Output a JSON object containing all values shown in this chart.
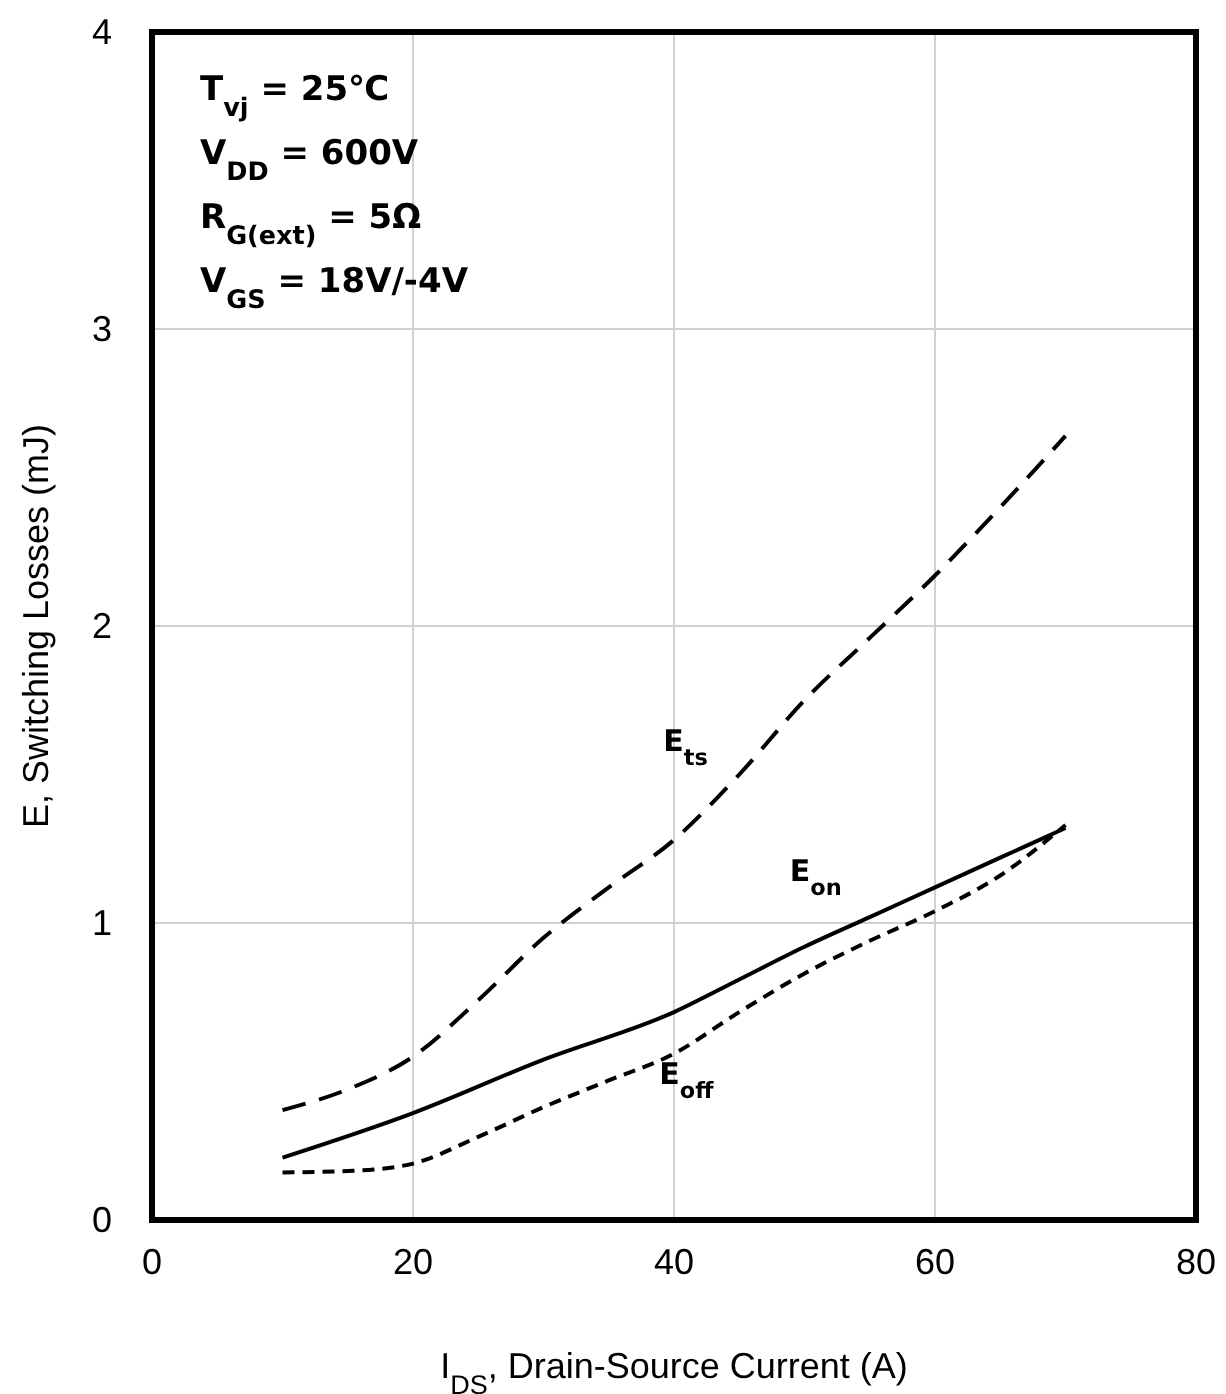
{
  "chart_data": {
    "type": "line",
    "xlabel": "I$_{DS}$, Drain-Source Current (A)",
    "ylabel": "E, Switching Losses (mJ)",
    "xlim": [
      0,
      80
    ],
    "xticks": [
      0,
      20,
      40,
      60,
      80
    ],
    "ylim": [
      0,
      4
    ],
    "yticks": [
      0,
      1,
      2,
      3,
      4
    ],
    "grid": true,
    "legend": false,
    "marker": "none",
    "annotations": [
      "T$_{vj}$ = 25℃",
      "V$_{DD}$ = 600V",
      "R$_{G(ext)}$ = 5Ω",
      "V$_{GS}$ = 18V/-4V"
    ],
    "series": [
      {
        "name": "E$_{ts}$",
        "color": "#000000",
        "line_style": "dashed",
        "x": [
          10,
          15,
          20,
          25,
          30,
          35,
          40,
          45,
          50,
          55,
          60,
          65,
          70
        ],
        "values": [
          0.37,
          0.44,
          0.55,
          0.74,
          0.95,
          1.12,
          1.28,
          1.5,
          1.75,
          1.96,
          2.17,
          2.4,
          2.64
        ]
      },
      {
        "name": "E$_{on}$",
        "color": "#000000",
        "line_style": "solid",
        "x": [
          10,
          20,
          30,
          40,
          45,
          50,
          55,
          60,
          65,
          70
        ],
        "values": [
          0.21,
          0.36,
          0.54,
          0.7,
          0.81,
          0.92,
          1.02,
          1.12,
          1.22,
          1.32
        ]
      },
      {
        "name": "E$_{off}$",
        "color": "#000000",
        "line_style": "dotted",
        "x": [
          10,
          15,
          17,
          20,
          25,
          30,
          35,
          40,
          45,
          50,
          55,
          60,
          65,
          70
        ],
        "values": [
          0.16,
          0.165,
          0.17,
          0.19,
          0.28,
          0.38,
          0.47,
          0.56,
          0.7,
          0.83,
          0.94,
          1.04,
          1.16,
          1.33
        ]
      }
    ]
  }
}
